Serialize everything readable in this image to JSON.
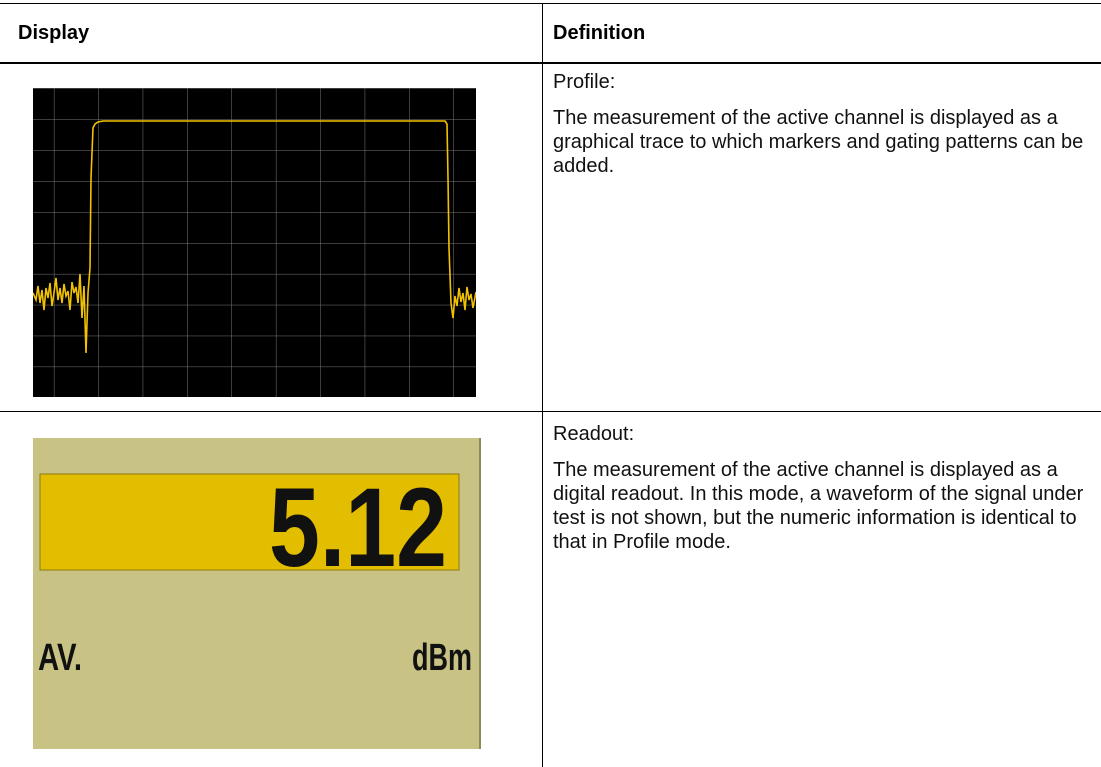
{
  "header": {
    "display": "Display",
    "definition": "Definition"
  },
  "rows": [
    {
      "title": "Profile:",
      "text": "The measurement of the active channel is displayed as a graphical trace to which markers and gating patterns can be added."
    },
    {
      "title": "Readout:",
      "text": "The measurement of the active channel is displayed as a digital readout. In this mode, a waveform of the signal under test is not shown, but the numeric information is identical to that in Profile mode.",
      "readout": "5.12",
      "mode": "AV.",
      "unit": "dBm"
    }
  ]
}
